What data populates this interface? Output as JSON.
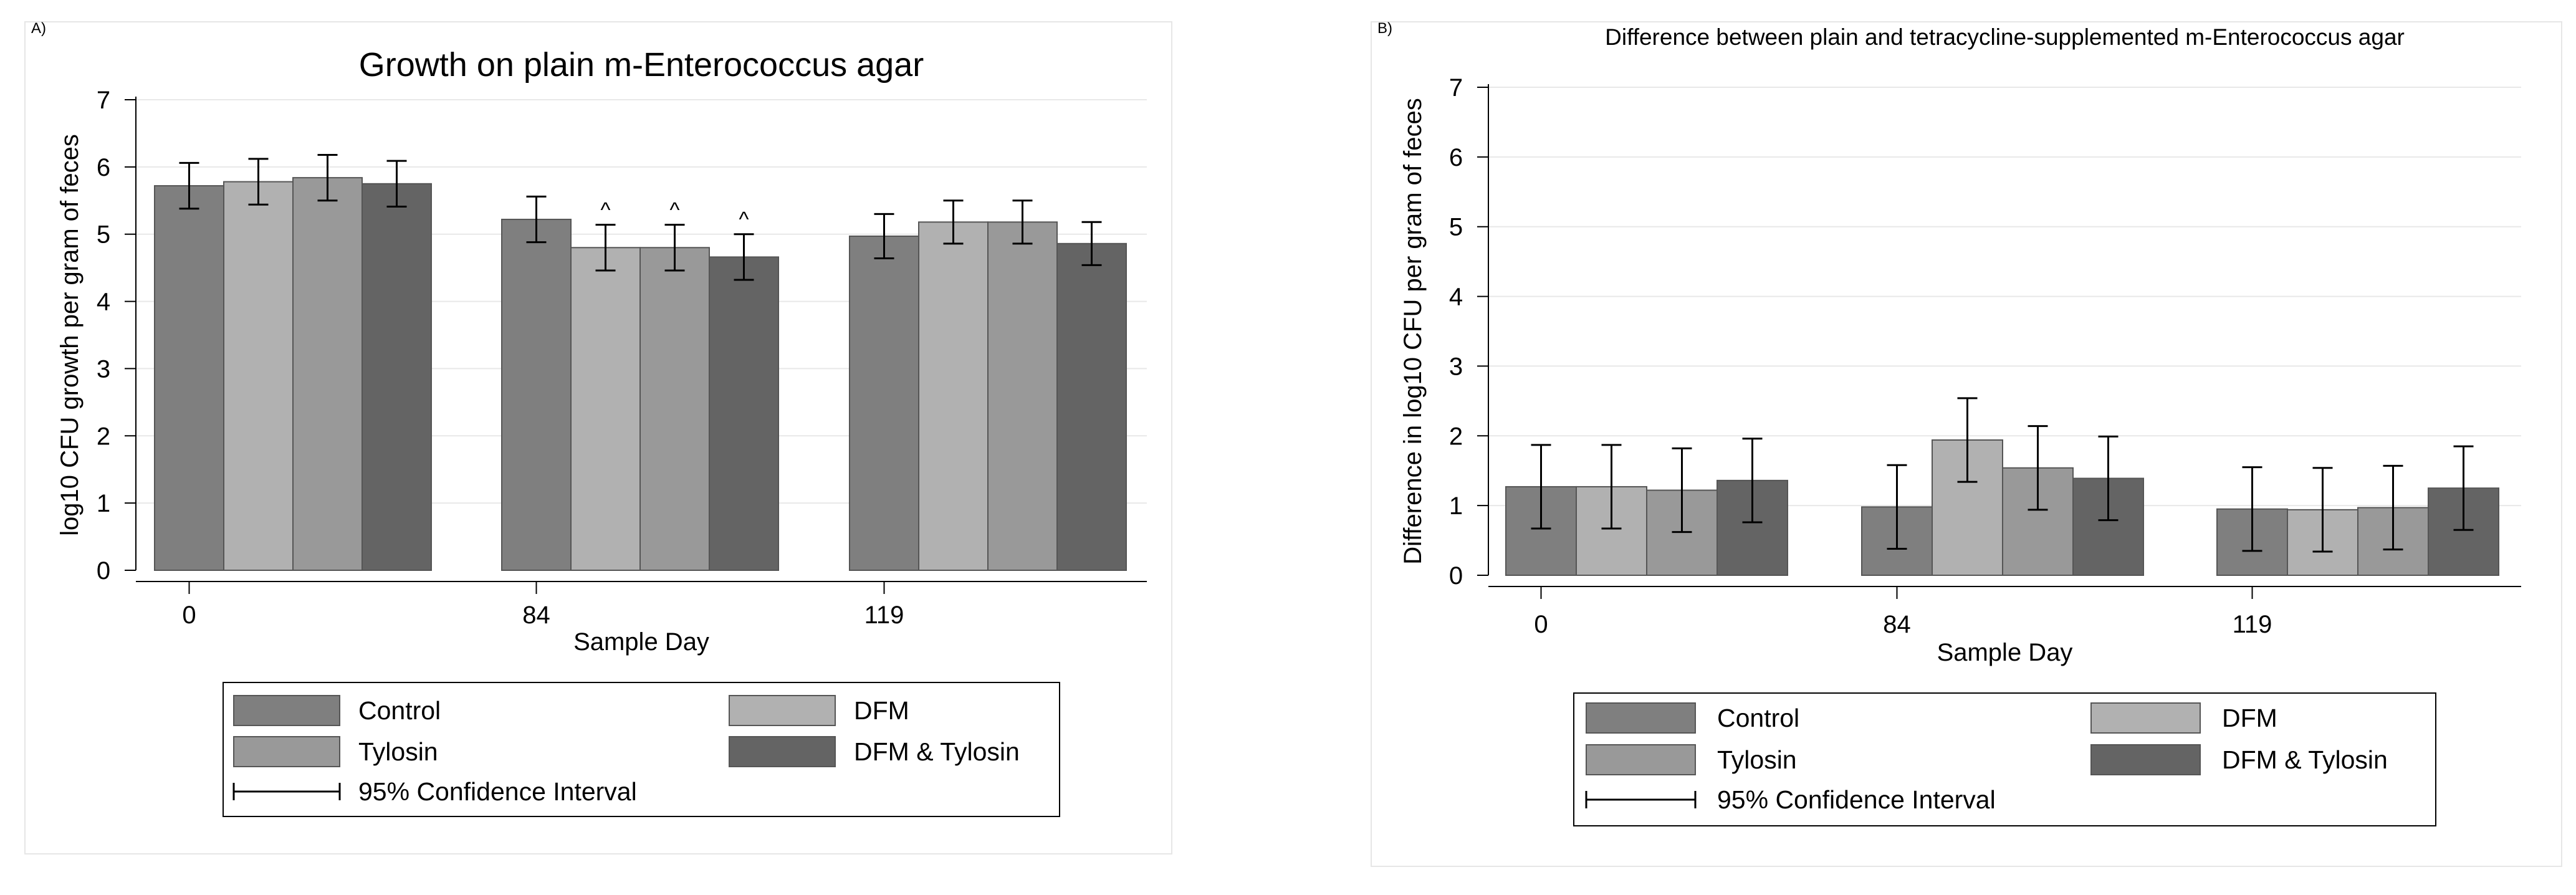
{
  "chart_data": [
    {
      "type": "bar",
      "panel_label": "A)",
      "title": "Growth on plain m-Enterococcus agar",
      "xlabel": "Sample Day",
      "ylabel": "log10 CFU growth per gram of feces",
      "categories": [
        "0",
        "84",
        "119"
      ],
      "ylim": [
        0,
        7
      ],
      "yticks": [
        "0",
        "1",
        "2",
        "3",
        "4",
        "5",
        "6",
        "7"
      ],
      "grid": true,
      "legend_position": "bottom",
      "series": [
        {
          "name": "Control",
          "color": "#7f7f7f",
          "values": [
            5.72,
            5.22,
            4.97
          ],
          "ci_low": [
            5.38,
            4.88,
            4.64
          ],
          "ci_high": [
            6.06,
            5.56,
            5.3
          ]
        },
        {
          "name": "DFM",
          "color": "#b1b1b1",
          "values": [
            5.78,
            4.8,
            5.18
          ],
          "ci_low": [
            5.44,
            4.46,
            4.86
          ],
          "ci_high": [
            6.12,
            5.14,
            5.5
          ]
        },
        {
          "name": "Tylosin",
          "color": "#999999",
          "values": [
            5.84,
            4.8,
            5.18
          ],
          "ci_low": [
            5.5,
            4.46,
            4.86
          ],
          "ci_high": [
            6.18,
            5.14,
            5.5
          ]
        },
        {
          "name": "DFM & Tylosin",
          "color": "#646464",
          "values": [
            5.75,
            4.66,
            4.86
          ],
          "ci_low": [
            5.41,
            4.32,
            4.54
          ],
          "ci_high": [
            6.09,
            5.0,
            5.18
          ]
        }
      ],
      "markers": [
        {
          "category": "84",
          "series": "DFM",
          "text": "^"
        },
        {
          "category": "84",
          "series": "Tylosin",
          "text": "^"
        },
        {
          "category": "84",
          "series": "DFM & Tylosin",
          "text": "^"
        }
      ],
      "ci_legend_label": "95% Confidence Interval"
    },
    {
      "type": "bar",
      "panel_label": "B)",
      "title": "Difference between plain and tetracycline-supplemented m-Enterococcus agar",
      "xlabel": "Sample Day",
      "ylabel": "Difference in log10 CFU per gram of feces",
      "categories": [
        "0",
        "84",
        "119"
      ],
      "ylim": [
        0,
        7
      ],
      "yticks": [
        "0",
        "1",
        "2",
        "3",
        "4",
        "5",
        "6",
        "7"
      ],
      "grid": true,
      "legend_position": "bottom",
      "series": [
        {
          "name": "Control",
          "color": "#7f7f7f",
          "values": [
            1.27,
            0.98,
            0.95
          ],
          "ci_low": [
            0.67,
            0.38,
            0.35
          ],
          "ci_high": [
            1.87,
            1.58,
            1.55
          ]
        },
        {
          "name": "DFM",
          "color": "#b1b1b1",
          "values": [
            1.27,
            1.94,
            0.94
          ],
          "ci_low": [
            0.67,
            1.34,
            0.34
          ],
          "ci_high": [
            1.87,
            2.54,
            1.54
          ]
        },
        {
          "name": "Tylosin",
          "color": "#999999",
          "values": [
            1.22,
            1.54,
            0.97
          ],
          "ci_low": [
            0.62,
            0.94,
            0.37
          ],
          "ci_high": [
            1.82,
            2.14,
            1.57
          ]
        },
        {
          "name": "DFM & Tylosin",
          "color": "#646464",
          "values": [
            1.36,
            1.39,
            1.25
          ],
          "ci_low": [
            0.76,
            0.79,
            0.65
          ],
          "ci_high": [
            1.96,
            1.99,
            1.85
          ]
        }
      ],
      "markers": [],
      "ci_legend_label": "95% Confidence Interval"
    }
  ]
}
